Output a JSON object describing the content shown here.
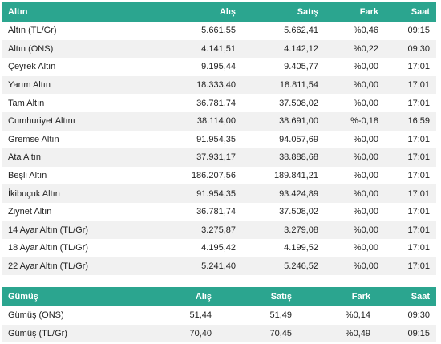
{
  "gold": {
    "headers": [
      "Altın",
      "Alış",
      "Satış",
      "Fark",
      "Saat"
    ],
    "rows": [
      [
        "Altın (TL/Gr)",
        "5.661,55",
        "5.662,41",
        "%0,46",
        "09:15"
      ],
      [
        "Altın (ONS)",
        "4.141,51",
        "4.142,12",
        "%0,22",
        "09:30"
      ],
      [
        "Çeyrek Altın",
        "9.195,44",
        "9.405,77",
        "%0,00",
        "17:01"
      ],
      [
        "Yarım Altın",
        "18.333,40",
        "18.811,54",
        "%0,00",
        "17:01"
      ],
      [
        "Tam Altın",
        "36.781,74",
        "37.508,02",
        "%0,00",
        "17:01"
      ],
      [
        "Cumhuriyet Altını",
        "38.114,00",
        "38.691,00",
        "%-0,18",
        "16:59"
      ],
      [
        "Gremse Altın",
        "91.954,35",
        "94.057,69",
        "%0,00",
        "17:01"
      ],
      [
        "Ata Altın",
        "37.931,17",
        "38.888,68",
        "%0,00",
        "17:01"
      ],
      [
        "Beşli Altın",
        "186.207,56",
        "189.841,21",
        "%0,00",
        "17:01"
      ],
      [
        "İkibuçuk Altın",
        "91.954,35",
        "93.424,89",
        "%0,00",
        "17:01"
      ],
      [
        "Ziynet Altın",
        "36.781,74",
        "37.508,02",
        "%0,00",
        "17:01"
      ],
      [
        "14 Ayar Altın (TL/Gr)",
        "3.275,87",
        "3.279,08",
        "%0,00",
        "17:01"
      ],
      [
        "18 Ayar Altın (TL/Gr)",
        "4.195,42",
        "4.199,52",
        "%0,00",
        "17:01"
      ],
      [
        "22 Ayar Altın (TL/Gr)",
        "5.241,40",
        "5.246,52",
        "%0,00",
        "17:01"
      ]
    ]
  },
  "silver": {
    "headers": [
      "Gümüş",
      "Alış",
      "Satış",
      "Fark",
      "Saat"
    ],
    "rows": [
      [
        "Gümüş (ONS)",
        "51,44",
        "51,49",
        "%0,14",
        "09:30"
      ],
      [
        "Gümüş (TL/Gr)",
        "70,40",
        "70,45",
        "%0,49",
        "09:15"
      ]
    ]
  },
  "colors": {
    "header_bg": "#2ba58f",
    "row_alt": "#f1f1f1"
  }
}
